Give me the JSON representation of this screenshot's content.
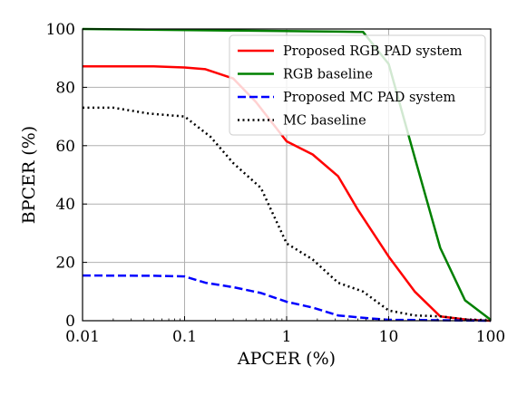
{
  "chart_data": {
    "type": "line",
    "xlabel": "APCER (%)",
    "ylabel": "BPCER (%)",
    "xscale": "log",
    "xlim": [
      0.01,
      100
    ],
    "ylim": [
      0,
      100
    ],
    "x_ticks": [
      "0.01",
      "0.1",
      "1",
      "10",
      "100"
    ],
    "y_ticks": [
      "0",
      "20",
      "40",
      "60",
      "80",
      "100"
    ],
    "grid": true,
    "legend_position": "top-right",
    "series": [
      {
        "name": "Proposed RGB PAD system",
        "color": "#ff0000",
        "style": "solid",
        "points": [
          [
            0.01,
            87.2
          ],
          [
            0.05,
            87.2
          ],
          [
            0.1,
            86.8
          ],
          [
            0.16,
            86.2
          ],
          [
            0.3,
            83.0
          ],
          [
            0.5,
            75.0
          ],
          [
            1.0,
            61.5
          ],
          [
            1.8,
            57.0
          ],
          [
            3.2,
            49.5
          ],
          [
            5.0,
            38.0
          ],
          [
            10.0,
            22.0
          ],
          [
            18.0,
            10.0
          ],
          [
            32.0,
            1.5
          ],
          [
            60.0,
            0.3
          ],
          [
            100.0,
            0.0
          ]
        ]
      },
      {
        "name": "RGB baseline",
        "color": "#008000",
        "style": "solid",
        "points": [
          [
            0.01,
            100.0
          ],
          [
            5.6,
            99.0
          ],
          [
            10.0,
            88.0
          ],
          [
            18.0,
            56.0
          ],
          [
            32.0,
            25.0
          ],
          [
            56.0,
            7.0
          ],
          [
            100.0,
            0.3
          ]
        ]
      },
      {
        "name": "Proposed MC PAD system",
        "color": "#0000ff",
        "style": "dashed",
        "points": [
          [
            0.01,
            15.5
          ],
          [
            0.05,
            15.4
          ],
          [
            0.1,
            15.2
          ],
          [
            0.16,
            13.0
          ],
          [
            0.3,
            11.5
          ],
          [
            0.56,
            9.5
          ],
          [
            1.0,
            6.5
          ],
          [
            1.8,
            4.5
          ],
          [
            3.2,
            1.8
          ],
          [
            5.6,
            1.0
          ],
          [
            10.0,
            0.3
          ],
          [
            100.0,
            0.0
          ]
        ]
      },
      {
        "name": "MC baseline",
        "color": "#000000",
        "style": "dotted",
        "points": [
          [
            0.01,
            73.0
          ],
          [
            0.02,
            73.0
          ],
          [
            0.045,
            71.0
          ],
          [
            0.1,
            70.0
          ],
          [
            0.18,
            63.0
          ],
          [
            0.3,
            54.0
          ],
          [
            0.56,
            45.5
          ],
          [
            1.0,
            26.5
          ],
          [
            1.8,
            21.0
          ],
          [
            3.2,
            13.0
          ],
          [
            5.6,
            10.0
          ],
          [
            10.0,
            3.5
          ],
          [
            18.0,
            1.8
          ],
          [
            32.0,
            1.5
          ],
          [
            56.0,
            0.5
          ],
          [
            100.0,
            0.0
          ]
        ]
      }
    ]
  }
}
